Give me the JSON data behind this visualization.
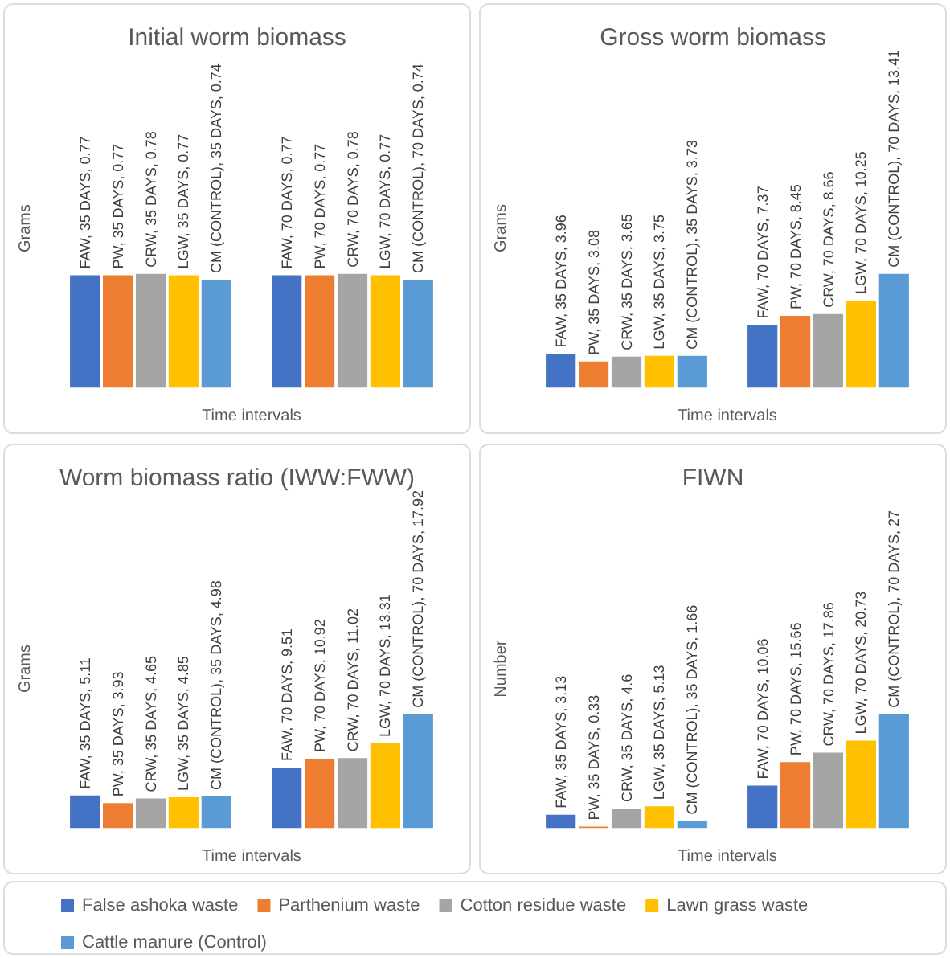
{
  "chart_data": [
    {
      "type": "bar",
      "title": "Initial worm biomass",
      "xlabel": "Time intervals",
      "ylabel": "Grams",
      "categories": [
        null,
        null
      ],
      "legend": "bottom",
      "series": [
        {
          "name": "False ashoka waste",
          "color": "#4472c4",
          "values": [
            0.77,
            0.77
          ],
          "value_labels": [
            "FAW, 35 DAYS, 0.77",
            "FAW, 70 DAYS, 0.77"
          ]
        },
        {
          "name": "Parthenium waste",
          "color": "#ed7d31",
          "values": [
            0.77,
            0.77
          ],
          "value_labels": [
            "PW, 35 DAYS, 0.77",
            "PW, 70 DAYS, 0.77"
          ]
        },
        {
          "name": "Cotton residue waste",
          "color": "#a5a5a5",
          "values": [
            0.78,
            0.78
          ],
          "value_labels": [
            "CRW, 35 DAYS, 0.78",
            "CRW, 70 DAYS, 0.78"
          ]
        },
        {
          "name": "Lawn grass waste",
          "color": "#ffc000",
          "values": [
            0.77,
            0.77
          ],
          "value_labels": [
            "LGW, 35 DAYS, 0.77",
            "LGW, 70 DAYS, 0.77"
          ]
        },
        {
          "name": "Cattle manure (Control)",
          "color": "#5b9bd5",
          "values": [
            0.74,
            0.74
          ],
          "value_labels": [
            "CM (CONTROL), 35 DAYS, 0.74",
            "CM (CONTROL), 70 DAYS, 0.74"
          ]
        }
      ]
    },
    {
      "type": "bar",
      "title": "Gross worm biomass",
      "xlabel": "Time intervals",
      "ylabel": "Grams",
      "categories": [
        null,
        null
      ],
      "series": [
        {
          "color": "#4472c4",
          "values": [
            3.96,
            7.37
          ],
          "value_labels": [
            "FAW, 35 DAYS, 3.96",
            "FAW, 70 DAYS, 7.37"
          ]
        },
        {
          "color": "#ed7d31",
          "values": [
            3.08,
            8.45
          ],
          "value_labels": [
            "PW, 35 DAYS, 3.08",
            "PW, 70 DAYS, 8.45"
          ]
        },
        {
          "color": "#a5a5a5",
          "values": [
            3.65,
            8.66
          ],
          "value_labels": [
            "CRW, 35 DAYS, 3.65",
            "CRW, 70 DAYS, 8.66"
          ]
        },
        {
          "color": "#ffc000",
          "values": [
            3.75,
            10.25
          ],
          "value_labels": [
            "LGW, 35 DAYS, 3.75",
            "LGW, 70 DAYS, 10.25"
          ]
        },
        {
          "color": "#5b9bd5",
          "values": [
            3.73,
            13.41
          ],
          "value_labels": [
            "CM (CONTROL), 35 DAYS, 3.73",
            "CM (CONTROL), 70 DAYS, 13.41"
          ]
        }
      ]
    },
    {
      "type": "bar",
      "title": "Worm biomass ratio (IWW:FWW)",
      "xlabel": "Time intervals",
      "ylabel": "Grams",
      "categories": [
        null,
        null
      ],
      "series": [
        {
          "color": "#4472c4",
          "values": [
            5.11,
            9.51
          ],
          "value_labels": [
            "FAW, 35 DAYS, 5.11",
            "FAW, 70 DAYS, 9.51"
          ]
        },
        {
          "color": "#ed7d31",
          "values": [
            3.93,
            10.92
          ],
          "value_labels": [
            "PW, 35 DAYS, 3.93",
            "PW, 70 DAYS, 10.92"
          ]
        },
        {
          "color": "#a5a5a5",
          "values": [
            4.65,
            11.02
          ],
          "value_labels": [
            "CRW, 35 DAYS, 4.65",
            "CRW, 70 DAYS, 11.02"
          ]
        },
        {
          "color": "#ffc000",
          "values": [
            4.85,
            13.31
          ],
          "value_labels": [
            "LGW, 35 DAYS, 4.85",
            "LGW, 70 DAYS, 13.31"
          ]
        },
        {
          "color": "#5b9bd5",
          "values": [
            4.98,
            17.92
          ],
          "value_labels": [
            "CM (CONTROL), 35 DAYS, 4.98",
            "CM (CONTROL), 70 DAYS, 17.92"
          ]
        }
      ]
    },
    {
      "type": "bar",
      "title": "FIWN",
      "xlabel": "Time intervals",
      "ylabel": "Number",
      "categories": [
        null,
        null
      ],
      "series": [
        {
          "color": "#4472c4",
          "values": [
            3.13,
            10.06
          ],
          "value_labels": [
            "FAW, 35 DAYS, 3.13",
            "FAW, 70 DAYS, 10.06"
          ]
        },
        {
          "color": "#ed7d31",
          "values": [
            0.33,
            15.66
          ],
          "value_labels": [
            "PW, 35 DAYS, 0.33",
            "PW, 70 DAYS, 15.66"
          ]
        },
        {
          "color": "#a5a5a5",
          "values": [
            4.6,
            17.86
          ],
          "value_labels": [
            "CRW, 35 DAYS, 4.6",
            "CRW, 70 DAYS, 17.86"
          ]
        },
        {
          "color": "#ffc000",
          "values": [
            5.13,
            20.73
          ],
          "value_labels": [
            "LGW, 35 DAYS, 5.13",
            "LGW, 70 DAYS, 20.73"
          ]
        },
        {
          "color": "#5b9bd5",
          "values": [
            1.66,
            27
          ],
          "value_labels": [
            "CM (CONTROL), 35 DAYS, 1.66",
            "CM (CONTROL), 70 DAYS, 27"
          ]
        }
      ]
    }
  ]
}
